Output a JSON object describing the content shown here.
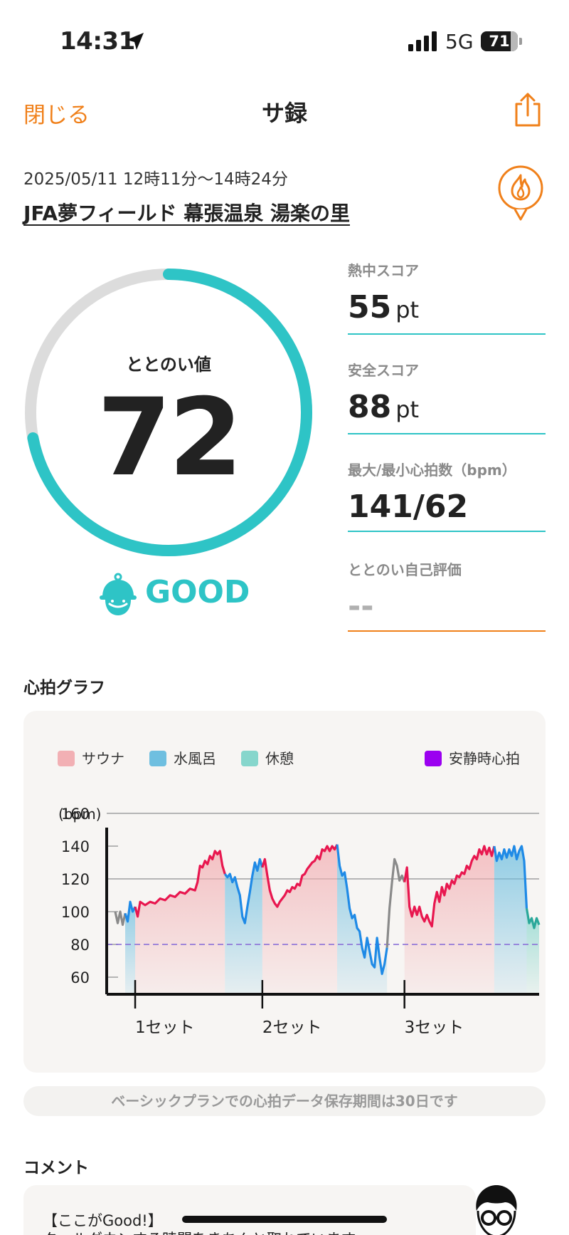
{
  "status_bar": {
    "time": "14:31",
    "network": "5G",
    "battery": "71"
  },
  "nav": {
    "close_label": "閉じる",
    "title": "サ録"
  },
  "session": {
    "date_range": "2025/05/11 12時11分〜14時24分",
    "facility": "JFA夢フィールド 幕張温泉 湯楽の里"
  },
  "totonoi": {
    "label": "ととのい値",
    "value": "72",
    "grade": "GOOD",
    "score_fraction": 0.72
  },
  "stats": [
    {
      "label": "熱中スコア",
      "value": "55",
      "unit": "pt"
    },
    {
      "label": "安全スコア",
      "value": "88",
      "unit": "pt"
    },
    {
      "label": "最大/最小心拍数（bpm）",
      "value": "141/62",
      "unit": ""
    },
    {
      "label": "ととのい自己評価",
      "value": "--",
      "unit": ""
    }
  ],
  "colors": {
    "accent": "#f0801a",
    "teal": "#2ec4c6",
    "sauna": "#e8174f",
    "water": "#1f8ae6",
    "rest": "#2aa89a",
    "resting_hr": "#9b00f0"
  },
  "graph_section": {
    "title": "心拍グラフ"
  },
  "chart_data": {
    "type": "line",
    "ylabel": "(bpm)",
    "ylim": [
      50,
      170
    ],
    "yticks": [
      60,
      80,
      100,
      120,
      140,
      160
    ],
    "legend": [
      {
        "name": "サウナ",
        "color": "#f2b0b4"
      },
      {
        "name": "水風呂",
        "color": "#6fbfe0"
      },
      {
        "name": "休憩",
        "color": "#86d6cc"
      },
      {
        "name": "安静時心拍",
        "color": "#9b00f0"
      }
    ],
    "resting_hr": 80,
    "set_labels": [
      "1セット",
      "2セット",
      "3セット"
    ],
    "segments": [
      {
        "type": "other",
        "points": [
          [
            0,
            100
          ],
          [
            2,
            93
          ],
          [
            4,
            100
          ],
          [
            6,
            92
          ],
          [
            8,
            99
          ]
        ]
      },
      {
        "type": "water",
        "points": [
          [
            8,
            99
          ],
          [
            10,
            94
          ],
          [
            12,
            106
          ],
          [
            14,
            100
          ],
          [
            16,
            103
          ]
        ]
      },
      {
        "type": "sauna",
        "points": [
          [
            16,
            103
          ],
          [
            18,
            97
          ],
          [
            20,
            106
          ],
          [
            24,
            104
          ],
          [
            28,
            106
          ],
          [
            32,
            105
          ],
          [
            36,
            108
          ],
          [
            40,
            107
          ],
          [
            44,
            110
          ],
          [
            48,
            109
          ],
          [
            52,
            112
          ],
          [
            56,
            111
          ],
          [
            60,
            114
          ],
          [
            64,
            113
          ],
          [
            66,
            118
          ],
          [
            68,
            128
          ],
          [
            70,
            127
          ],
          [
            72,
            131
          ],
          [
            74,
            129
          ],
          [
            76,
            134
          ],
          [
            78,
            132
          ],
          [
            80,
            137
          ],
          [
            82,
            135
          ],
          [
            84,
            137
          ],
          [
            86,
            128
          ],
          [
            88,
            123
          ]
        ]
      },
      {
        "type": "water",
        "points": [
          [
            88,
            123
          ],
          [
            90,
            121
          ],
          [
            92,
            123
          ],
          [
            94,
            118
          ],
          [
            96,
            121
          ],
          [
            98,
            115
          ],
          [
            100,
            110
          ],
          [
            102,
            97
          ],
          [
            104,
            93
          ],
          [
            106,
            103
          ],
          [
            108,
            112
          ],
          [
            110,
            122
          ],
          [
            112,
            130
          ],
          [
            114,
            125
          ],
          [
            116,
            132
          ],
          [
            118,
            127
          ]
        ]
      },
      {
        "type": "sauna",
        "points": [
          [
            118,
            127
          ],
          [
            120,
            132
          ],
          [
            122,
            122
          ],
          [
            124,
            113
          ],
          [
            126,
            108
          ],
          [
            128,
            105
          ],
          [
            130,
            103
          ],
          [
            132,
            106
          ],
          [
            134,
            108
          ],
          [
            136,
            110
          ],
          [
            138,
            113
          ],
          [
            140,
            112
          ],
          [
            142,
            115
          ],
          [
            144,
            114
          ],
          [
            146,
            117
          ],
          [
            148,
            116
          ],
          [
            150,
            122
          ],
          [
            152,
            123
          ],
          [
            154,
            126
          ],
          [
            156,
            128
          ],
          [
            158,
            130
          ],
          [
            160,
            131
          ],
          [
            162,
            134
          ],
          [
            164,
            132
          ],
          [
            166,
            138
          ],
          [
            168,
            137
          ],
          [
            170,
            140
          ],
          [
            172,
            137
          ],
          [
            174,
            140
          ],
          [
            176,
            138
          ],
          [
            178,
            141
          ]
        ]
      },
      {
        "type": "water",
        "points": [
          [
            178,
            141
          ],
          [
            180,
            128
          ],
          [
            182,
            122
          ],
          [
            184,
            124
          ],
          [
            186,
            114
          ],
          [
            188,
            102
          ],
          [
            190,
            96
          ],
          [
            192,
            98
          ],
          [
            194,
            90
          ],
          [
            196,
            88
          ],
          [
            198,
            78
          ],
          [
            200,
            72
          ],
          [
            202,
            84
          ],
          [
            204,
            76
          ],
          [
            206,
            68
          ],
          [
            208,
            66
          ],
          [
            210,
            84
          ],
          [
            212,
            72
          ],
          [
            214,
            62
          ],
          [
            216,
            68
          ],
          [
            218,
            78
          ]
        ]
      },
      {
        "type": "other",
        "points": [
          [
            218,
            78
          ],
          [
            220,
            102
          ],
          [
            222,
            118
          ],
          [
            224,
            132
          ],
          [
            226,
            128
          ],
          [
            228,
            119
          ],
          [
            230,
            122
          ],
          [
            232,
            118
          ]
        ]
      },
      {
        "type": "sauna",
        "points": [
          [
            232,
            118
          ],
          [
            234,
            127
          ],
          [
            236,
            103
          ],
          [
            238,
            97
          ],
          [
            240,
            103
          ],
          [
            242,
            98
          ],
          [
            244,
            103
          ],
          [
            246,
            97
          ],
          [
            248,
            94
          ],
          [
            250,
            98
          ],
          [
            252,
            94
          ],
          [
            254,
            91
          ],
          [
            256,
            105
          ],
          [
            258,
            112
          ],
          [
            260,
            106
          ],
          [
            262,
            115
          ],
          [
            264,
            110
          ],
          [
            266,
            117
          ],
          [
            268,
            114
          ],
          [
            270,
            119
          ],
          [
            272,
            117
          ],
          [
            274,
            122
          ],
          [
            276,
            121
          ],
          [
            278,
            124
          ],
          [
            280,
            123
          ],
          [
            282,
            128
          ],
          [
            284,
            126
          ],
          [
            286,
            131
          ],
          [
            288,
            134
          ],
          [
            290,
            132
          ],
          [
            292,
            138
          ],
          [
            294,
            135
          ],
          [
            296,
            140
          ],
          [
            298,
            135
          ],
          [
            300,
            139
          ],
          [
            302,
            134
          ],
          [
            304,
            140
          ]
        ]
      },
      {
        "type": "water",
        "points": [
          [
            304,
            140
          ],
          [
            306,
            131
          ],
          [
            308,
            136
          ],
          [
            310,
            132
          ],
          [
            312,
            138
          ],
          [
            314,
            133
          ],
          [
            316,
            138
          ],
          [
            318,
            134
          ],
          [
            320,
            140
          ],
          [
            322,
            132
          ],
          [
            324,
            137
          ],
          [
            326,
            140
          ],
          [
            328,
            131
          ],
          [
            330,
            102
          ]
        ]
      },
      {
        "type": "rest",
        "points": [
          [
            330,
            102
          ],
          [
            332,
            93
          ],
          [
            334,
            96
          ],
          [
            336,
            90
          ],
          [
            338,
            96
          ],
          [
            340,
            92
          ]
        ]
      }
    ]
  },
  "notice": "ベーシックプランでの心拍データ保存期間は30日です",
  "comment_section": {
    "title": "コメント",
    "line1": "【ここがGood!】",
    "line2": "クールダウンする時間をきちんと取れています"
  }
}
